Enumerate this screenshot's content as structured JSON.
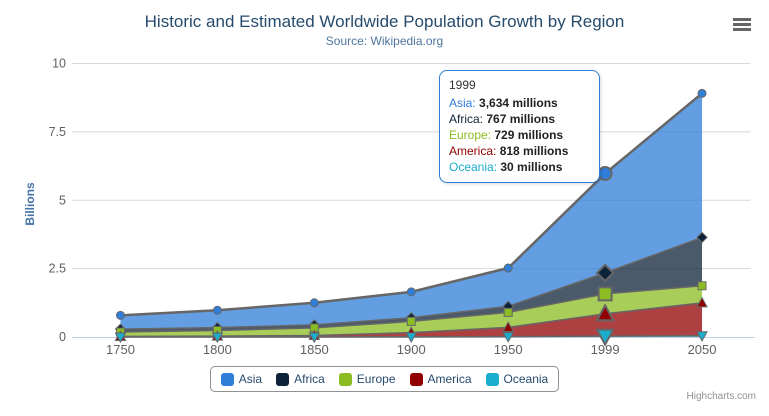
{
  "theme": {
    "title_color": "#274b6d",
    "subtitle_color": "#4d759e",
    "axis_label_color": "#606060",
    "axis_title_color": "#4572a7",
    "grid_color": "#d8d8d8",
    "axis_line_color": "#c0d0e0",
    "series_line_color": "#666666",
    "legend_text_color": "#274b6d",
    "legend_border_color": "#909090",
    "tooltip_border_color": "#2f7ed8",
    "credits_color": "#909090"
  },
  "icons": {
    "context_menu": "hamburger"
  },
  "credits": {
    "label": "Highcharts.com"
  },
  "tooltip": {
    "header": "1999",
    "rows": [
      {
        "label": "Asia",
        "value": "3,634 millions"
      },
      {
        "label": "Africa",
        "value": "767 millions"
      },
      {
        "label": "Europe",
        "value": "729 millions"
      },
      {
        "label": "America",
        "value": "818 millions"
      },
      {
        "label": "Oceania",
        "value": "30 millions"
      }
    ]
  },
  "chart_data": {
    "type": "area",
    "stacking": "normal",
    "title": "Historic and Estimated Worldwide Population Growth by Region",
    "subtitle": "Source: Wikipedia.org",
    "categories": [
      "1750",
      "1800",
      "1850",
      "1900",
      "1950",
      "1999",
      "2050"
    ],
    "series": [
      {
        "name": "Asia",
        "color": "#2f7ed8",
        "marker": "circle",
        "values": [
          502,
          635,
          809,
          947,
          1402,
          3634,
          5268
        ]
      },
      {
        "name": "Africa",
        "color": "#0d233a",
        "marker": "diamond",
        "values": [
          106,
          107,
          111,
          133,
          221,
          767,
          1766
        ]
      },
      {
        "name": "Europe",
        "color": "#8bbc21",
        "marker": "square",
        "values": [
          163,
          203,
          276,
          408,
          547,
          729,
          628
        ]
      },
      {
        "name": "America",
        "color": "#910000",
        "marker": "triangle",
        "values": [
          18,
          31,
          54,
          156,
          339,
          818,
          1201
        ]
      },
      {
        "name": "Oceania",
        "color": "#1aadce",
        "marker": "triangle-down",
        "values": [
          2,
          2,
          2,
          6,
          13,
          30,
          46
        ]
      }
    ],
    "values_unit": "millions",
    "y_unit_divisor": 1000,
    "xlabel": "",
    "ylabel": "Billions",
    "ylim": [
      0,
      10
    ],
    "yticks": [
      0,
      2.5,
      5,
      7.5,
      10
    ],
    "ytick_labels": [
      "0",
      "2.5",
      "5",
      "7.5",
      "10"
    ],
    "grid": true,
    "legend_position": "bottom",
    "hover_category_index": 5
  }
}
